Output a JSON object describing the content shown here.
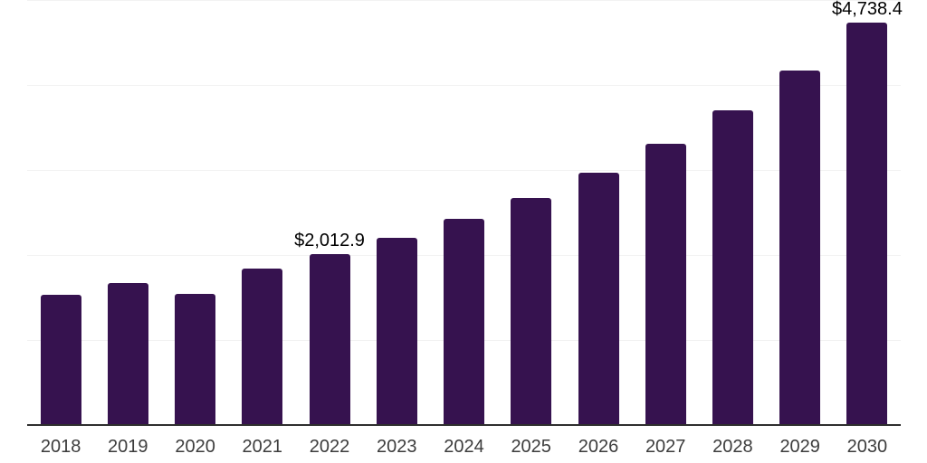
{
  "chart_data": {
    "type": "bar",
    "title": "",
    "xlabel": "",
    "ylabel": "",
    "categories": [
      "2018",
      "2019",
      "2020",
      "2021",
      "2022",
      "2023",
      "2024",
      "2025",
      "2026",
      "2027",
      "2028",
      "2029",
      "2030"
    ],
    "values": [
      1535,
      1670,
      1550,
      1840,
      2012.9,
      2205,
      2430,
      2675,
      2970,
      3315,
      3710,
      4170,
      4738.4
    ],
    "data_labels": [
      "",
      "",
      "",
      "",
      "$2,012.9",
      "",
      "",
      "",
      "",
      "",
      "",
      "",
      "$4,738.4"
    ],
    "ylim": [
      0,
      5000
    ],
    "gridline_values": [
      1000,
      2000,
      3000,
      4000,
      5000
    ],
    "grid_on": true,
    "legend_position": "none",
    "colors": {
      "bar": "#36124F",
      "grid": "#f2f2f2",
      "axis": "#2e2e2e",
      "data_label": "#000000",
      "tick_label": "#3c3c3c",
      "background": "#ffffff"
    }
  }
}
